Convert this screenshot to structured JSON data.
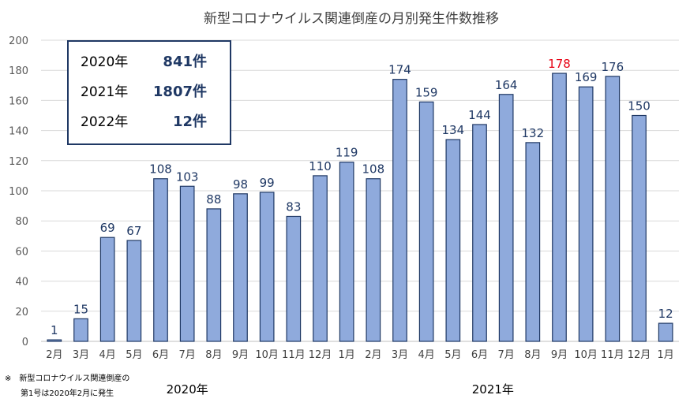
{
  "chart_data": {
    "type": "bar",
    "title": "新型コロナウイルス関連倒産の月別発生件数推移",
    "categories": [
      "2月",
      "3月",
      "4月",
      "5月",
      "6月",
      "7月",
      "8月",
      "9月",
      "10月",
      "11月",
      "12月",
      "1月",
      "2月",
      "3月",
      "4月",
      "5月",
      "6月",
      "7月",
      "8月",
      "9月",
      "10月",
      "11月",
      "12月",
      "1月"
    ],
    "values": [
      1,
      15,
      69,
      67,
      108,
      103,
      88,
      98,
      99,
      83,
      110,
      119,
      108,
      174,
      159,
      134,
      144,
      164,
      132,
      178,
      169,
      176,
      150,
      12
    ],
    "ylim": [
      0,
      200
    ],
    "yticks": [
      0,
      20,
      40,
      60,
      80,
      100,
      120,
      140,
      160,
      180,
      200
    ],
    "grid": true,
    "bar_color": "#8faadc",
    "bar_edge_color": "#1f3864",
    "label_color": "#1f3864",
    "highlight_index": 19,
    "highlight_color": "#e60012",
    "year_groups": [
      {
        "label": "2020年",
        "start": 0,
        "end": 10
      },
      {
        "label": "2021年",
        "start": 11,
        "end": 22
      }
    ]
  },
  "summary_box": [
    {
      "year": "2020年",
      "value": "841件"
    },
    {
      "year": "2021年",
      "value": "1807件"
    },
    {
      "year": "2022年",
      "value": "12件"
    }
  ],
  "note": {
    "line1": "※　新型コロナウイルス関連倒産の",
    "line2": "第1号は2020年2月に発生"
  }
}
